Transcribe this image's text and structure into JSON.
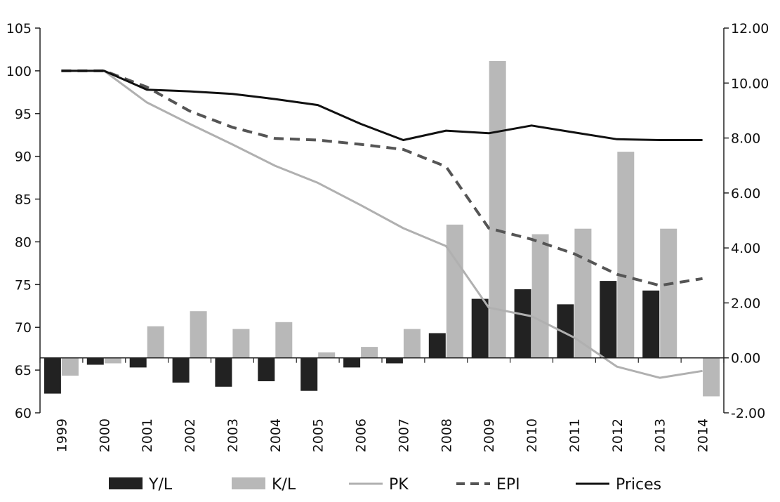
{
  "chart_data": {
    "type": "bar",
    "categories": [
      "1999",
      "2000",
      "2001",
      "2002",
      "2003",
      "2004",
      "2005",
      "2006",
      "2007",
      "2008",
      "2009",
      "2010",
      "2011",
      "2012",
      "2013",
      "2014"
    ],
    "left_axis": {
      "ylim": [
        60,
        105
      ],
      "ticks": [
        "60",
        "65",
        "70",
        "75",
        "80",
        "85",
        "90",
        "95",
        "100",
        "105"
      ]
    },
    "right_axis": {
      "ylim": [
        -2,
        12
      ],
      "ticks": [
        "-2.00",
        "0.00",
        "2.00",
        "4.00",
        "6.00",
        "8.00",
        "10.00",
        "12.00"
      ]
    },
    "series": [
      {
        "name": "Y/L",
        "kind": "bar",
        "axis": "right",
        "color": "#222222",
        "values": [
          -1.3,
          -0.25,
          -0.35,
          -0.9,
          -1.05,
          -0.85,
          -1.2,
          -0.35,
          -0.2,
          0.9,
          2.15,
          2.5,
          1.95,
          2.8,
          2.45,
          0.0
        ]
      },
      {
        "name": "K/L",
        "kind": "bar",
        "axis": "right",
        "color": "#b8b8b8",
        "values": [
          -0.65,
          -0.2,
          1.15,
          1.7,
          1.05,
          1.3,
          0.2,
          0.4,
          1.05,
          4.85,
          10.8,
          4.5,
          4.7,
          7.5,
          4.7,
          -1.4
        ]
      },
      {
        "name": "PK",
        "kind": "line",
        "axis": "left",
        "color": "#b0b0b0",
        "dash": "solid",
        "values": [
          100,
          100,
          96.3,
          93.8,
          91.4,
          88.9,
          86.9,
          84.3,
          81.6,
          79.5,
          72.3,
          71.3,
          68.8,
          65.4,
          64.1,
          64.9
        ]
      },
      {
        "name": "EPI",
        "kind": "line",
        "axis": "left",
        "color": "#555555",
        "dash": "dashed",
        "values": [
          100,
          100,
          98.1,
          95.3,
          93.4,
          92.1,
          91.9,
          91.4,
          90.8,
          88.8,
          81.6,
          80.3,
          78.6,
          76.2,
          74.9,
          75.7
        ]
      },
      {
        "name": "Prices",
        "kind": "line",
        "axis": "left",
        "color": "#111111",
        "dash": "solid",
        "values": [
          100,
          100,
          97.8,
          97.6,
          97.3,
          96.7,
          96.0,
          93.8,
          91.9,
          93.0,
          92.7,
          93.6,
          92.8,
          92.0,
          91.9,
          91.9
        ]
      }
    ],
    "legend": {
      "position": "bottom",
      "entries": [
        "Y/L",
        "K/L",
        "PK",
        "EPI",
        "Prices"
      ]
    },
    "grid": false
  }
}
